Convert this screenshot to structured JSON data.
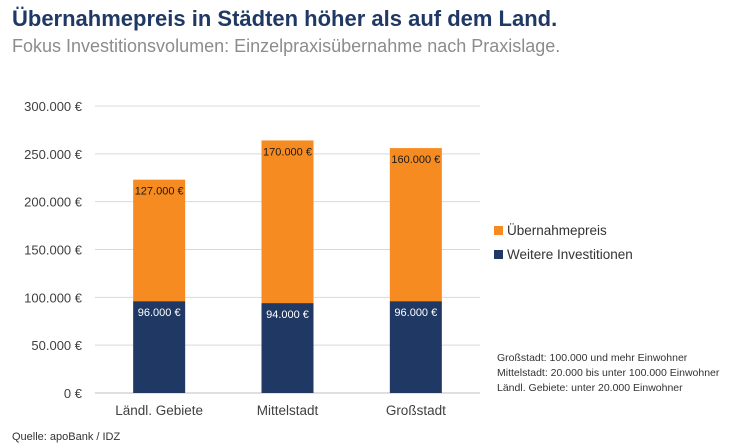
{
  "title": "Übernahmepreis in Städten höher als auf dem Land.",
  "subtitle": "Fokus Investitionsvolumen: Einzelpraxisübernahme nach Praxislage.",
  "source": "Quelle: apoBank / IDZ",
  "notes": [
    "Großstadt: 100.000 und mehr Einwohner",
    "Mittelstadt: 20.000 bis unter 100.000  Einwohner",
    "Ländl. Gebiete: unter 20.000 Einwohner"
  ],
  "colors": {
    "orange": "#f58b21",
    "navy": "#1f3864",
    "grid": "#d9d9d9",
    "title": "#1f3864",
    "subtitle": "#8c8c8c"
  },
  "chart_data": {
    "type": "bar",
    "stacked": true,
    "categories": [
      "Ländl. Gebiete",
      "Mittelstadt",
      "Großstadt"
    ],
    "series": [
      {
        "name": "Weitere Investitionen",
        "values": [
          96000,
          94000,
          96000
        ],
        "labels": [
          "96.000 €",
          "94.000 €",
          "96.000 €"
        ],
        "color": "#1f3864"
      },
      {
        "name": "Übernahmepreis",
        "values": [
          127000,
          170000,
          160000
        ],
        "labels": [
          "127.000 €",
          "170.000 €",
          "160.000 €"
        ],
        "color": "#f58b21"
      }
    ],
    "yticks": [
      0,
      50000,
      100000,
      150000,
      200000,
      250000,
      300000
    ],
    "yticklabels": [
      "0 €",
      "50.000 €",
      "100.000 €",
      "150.000 €",
      "200.000 €",
      "250.000 €",
      "300.000 €"
    ],
    "ylim": [
      0,
      300000
    ],
    "grid": true,
    "legend": "right"
  }
}
